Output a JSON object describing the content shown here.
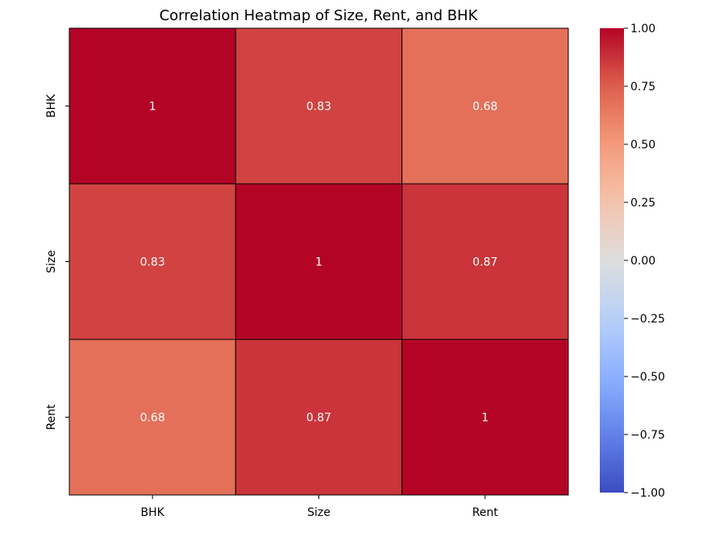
{
  "chart_data": {
    "type": "heatmap",
    "title": "Correlation Heatmap of Size, Rent, and BHK",
    "x_labels": [
      "BHK",
      "Size",
      "Rent"
    ],
    "y_labels": [
      "BHK",
      "Size",
      "Rent"
    ],
    "values": [
      [
        1.0,
        0.83,
        0.68
      ],
      [
        0.83,
        1.0,
        0.87
      ],
      [
        0.68,
        0.87,
        1.0
      ]
    ],
    "annotations": [
      [
        "1",
        "0.83",
        "0.68"
      ],
      [
        "0.83",
        "1",
        "0.87"
      ],
      [
        "0.68",
        "0.87",
        "1"
      ]
    ],
    "colormap": "coolwarm",
    "colorbar": {
      "vmin": -1.0,
      "vmax": 1.0,
      "ticks": [
        1.0,
        0.75,
        0.5,
        0.25,
        0.0,
        -0.25,
        -0.5,
        -0.75,
        -1.0
      ],
      "tick_labels": [
        "1.00",
        "0.75",
        "0.50",
        "0.25",
        "0.00",
        "−0.25",
        "−0.50",
        "−0.75",
        "−1.00"
      ]
    },
    "cell_edge_color": "#000000",
    "annotation_color": "#ffffff"
  }
}
